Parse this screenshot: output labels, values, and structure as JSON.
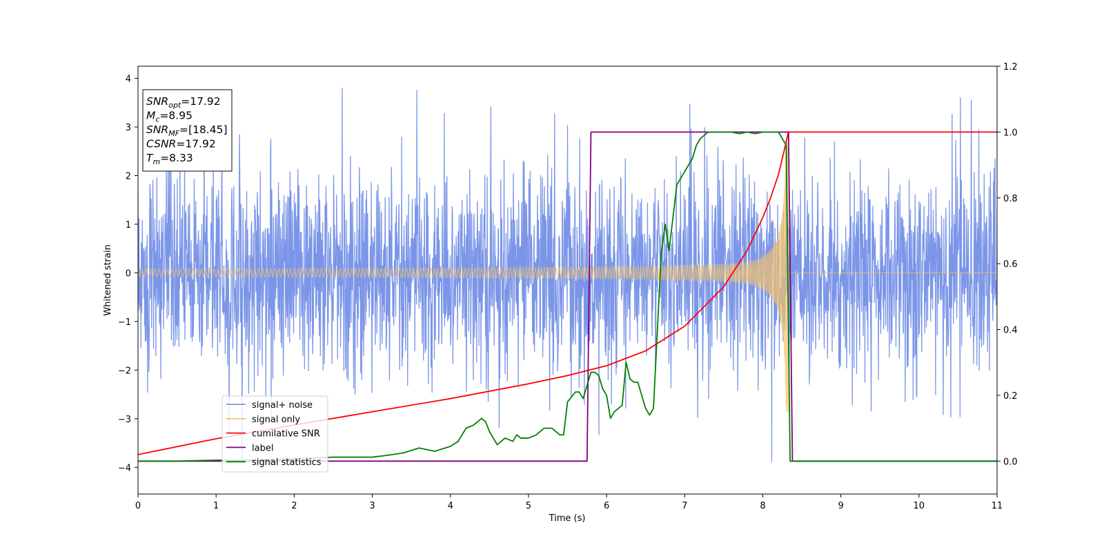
{
  "chart_data": {
    "type": "line",
    "xlabel": "Time (s)",
    "ylabel_left": "Whitened strain",
    "ylabel_right": "",
    "xlim": [
      0,
      11
    ],
    "ylim_left": [
      -4.55,
      4.25
    ],
    "ylim_right": [
      -0.1,
      1.2
    ],
    "x_ticks": [
      0,
      1,
      2,
      3,
      4,
      5,
      6,
      7,
      8,
      9,
      10,
      11
    ],
    "y_ticks_left": [
      -4,
      -3,
      -2,
      -1,
      0,
      1,
      2,
      3,
      4
    ],
    "y_ticks_right": [
      0.0,
      0.2,
      0.4,
      0.6,
      0.8,
      1.0,
      1.2
    ],
    "grid": false,
    "legend_position": "lower-left",
    "info_box": {
      "lines": [
        {
          "base": "SNR",
          "sub": "opt",
          "value": "=17.92"
        },
        {
          "base": "M",
          "sub": "c",
          "value": "=8.95"
        },
        {
          "base": "SNR",
          "sub": "MF",
          "value": "=[18.45]"
        },
        {
          "base": "CSNR",
          "sub": "",
          "value": "=17.92"
        },
        {
          "base": "T",
          "sub": "m",
          "value": "=8.33"
        }
      ]
    },
    "series": [
      {
        "name": "signal+ noise",
        "axis": "left",
        "color": "#7b96e8",
        "kind": "noise",
        "envelope_min": -3.9,
        "envelope_max": 3.8
      },
      {
        "name": "signal only",
        "axis": "left",
        "color": "#f5c26b",
        "kind": "chirp",
        "merger_time": 8.33,
        "amplitude_start": 0.08,
        "amplitude_peak": 3.0
      },
      {
        "name": "cumilative SNR",
        "axis": "right",
        "color": "#ff0000",
        "x": [
          0,
          1,
          2,
          3,
          4,
          5,
          5.5,
          6,
          6.5,
          7,
          7.5,
          7.8,
          8.0,
          8.1,
          8.2,
          8.25,
          8.3,
          8.33,
          8.4,
          11
        ],
        "y": [
          0.02,
          0.068,
          0.11,
          0.15,
          0.19,
          0.235,
          0.26,
          0.29,
          0.335,
          0.41,
          0.53,
          0.64,
          0.74,
          0.8,
          0.87,
          0.92,
          0.97,
          1.0,
          1.0,
          1.0
        ]
      },
      {
        "name": "label",
        "axis": "right",
        "color": "#800080",
        "x": [
          0,
          5.75,
          5.8,
          8.33,
          8.38,
          11
        ],
        "y": [
          0,
          0,
          1,
          1,
          0,
          0
        ]
      },
      {
        "name": "signal statistics",
        "axis": "right",
        "color": "#008000",
        "x": [
          0,
          0.5,
          1,
          1.5,
          2,
          2.5,
          3,
          3.2,
          3.4,
          3.6,
          3.8,
          4.0,
          4.1,
          4.2,
          4.3,
          4.4,
          4.45,
          4.5,
          4.55,
          4.6,
          4.65,
          4.7,
          4.8,
          4.85,
          4.9,
          5.0,
          5.1,
          5.2,
          5.3,
          5.4,
          5.45,
          5.5,
          5.6,
          5.65,
          5.7,
          5.8,
          5.85,
          5.9,
          5.95,
          6.0,
          6.05,
          6.1,
          6.2,
          6.25,
          6.3,
          6.35,
          6.4,
          6.5,
          6.55,
          6.6,
          6.7,
          6.75,
          6.8,
          6.85,
          6.9,
          6.95,
          7.0,
          7.05,
          7.1,
          7.15,
          7.2,
          7.3,
          7.4,
          7.5,
          7.6,
          7.7,
          7.8,
          7.9,
          8.0,
          8.1,
          8.2,
          8.25,
          8.3,
          8.35,
          8.4,
          9,
          10,
          11
        ],
        "y": [
          0.0,
          0.0,
          0.003,
          0.003,
          0.007,
          0.012,
          0.012,
          0.018,
          0.025,
          0.04,
          0.03,
          0.045,
          0.06,
          0.1,
          0.11,
          0.13,
          0.12,
          0.09,
          0.07,
          0.05,
          0.06,
          0.07,
          0.06,
          0.08,
          0.07,
          0.07,
          0.08,
          0.1,
          0.1,
          0.08,
          0.08,
          0.18,
          0.21,
          0.21,
          0.19,
          0.27,
          0.27,
          0.26,
          0.22,
          0.2,
          0.13,
          0.15,
          0.17,
          0.3,
          0.25,
          0.24,
          0.24,
          0.16,
          0.14,
          0.16,
          0.63,
          0.72,
          0.64,
          0.74,
          0.84,
          0.86,
          0.88,
          0.9,
          0.92,
          0.96,
          0.98,
          1.0,
          1.0,
          1.0,
          1.0,
          0.995,
          1.0,
          0.995,
          1.0,
          1.0,
          1.0,
          0.98,
          0.96,
          0.0,
          0.0,
          0.0,
          0.0,
          0.0
        ]
      }
    ]
  }
}
